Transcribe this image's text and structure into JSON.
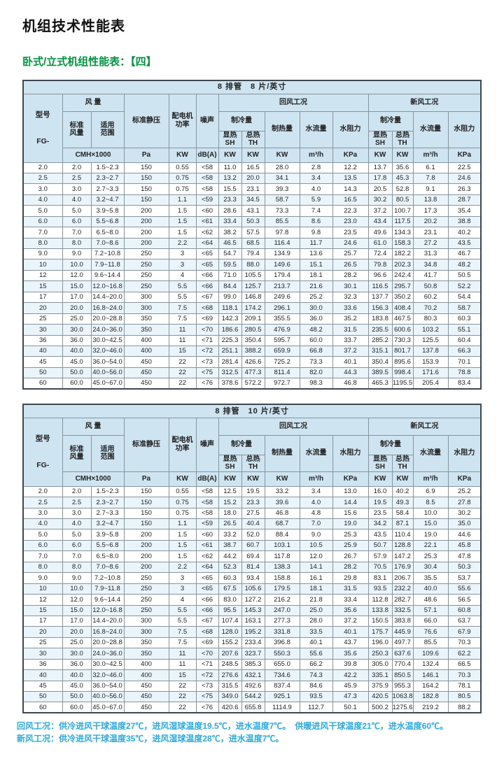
{
  "page": {
    "title": "机组技术性能表",
    "subtitle": "卧式/立式机组性能表：【四】",
    "notes": [
      "回风工况：供冷进风干球温度27℃，进风湿球温度19.5℃，进水温度7℃。　供暖进风干球温度21℃，进水温度60℃。",
      "新风工况：供冷进风干球温度35℃，进风湿球温度28℃，进水温度7℃。"
    ]
  },
  "colors": {
    "header_bg": "#cfe4f1",
    "stripe_bg": "#e9f4fb",
    "subtitle_green": "#009640",
    "note_blue": "#29abe2"
  },
  "header": {
    "rows": [
      [
        {
          "label": "型号\nFG-",
          "rowspan": 4,
          "name": "col-model",
          "cls": "model"
        },
        {
          "label": "风 量",
          "colspan": 2,
          "name": "col-air-volume"
        },
        {
          "label": "标准静压",
          "rowspan": 3,
          "name": "col-static-pressure"
        },
        {
          "label": "配电机\n功率",
          "rowspan": 3,
          "name": "col-motor-power"
        },
        {
          "label": "噪声",
          "rowspan": 3,
          "name": "col-noise"
        },
        {
          "label": "回风工况",
          "colspan": 5,
          "name": "col-return-air-condition"
        },
        {
          "label": "新风工况",
          "colspan": 4,
          "name": "col-fresh-air-condition"
        }
      ],
      [
        {
          "label": "标准\n风量",
          "rowspan": 2,
          "name": "col-standard-airflow"
        },
        {
          "label": "适用\n范围",
          "rowspan": 2,
          "name": "col-applicable-range"
        },
        {
          "label": "制冷量",
          "colspan": 2,
          "name": "col-cooling-capacity-return"
        },
        {
          "label": "制热量",
          "rowspan": 2,
          "name": "col-heating-capacity-return"
        },
        {
          "label": "水流量",
          "rowspan": 2,
          "name": "col-water-flow-return"
        },
        {
          "label": "水阻力",
          "rowspan": 2,
          "name": "col-water-resistance-return"
        },
        {
          "label": "制冷量",
          "colspan": 2,
          "name": "col-cooling-capacity-fresh"
        },
        {
          "label": "水流量",
          "rowspan": 2,
          "name": "col-water-flow-fresh"
        },
        {
          "label": "水阻力",
          "rowspan": 2,
          "name": "col-water-resistance-fresh"
        }
      ],
      [
        {
          "label": "显热\nSH",
          "name": "col-sensible-heat-return"
        },
        {
          "label": "总热\nTH",
          "name": "col-total-heat-return"
        },
        {
          "label": "显热\nSH",
          "name": "col-sensible-heat-fresh"
        },
        {
          "label": "总热\nTH",
          "name": "col-total-heat-fresh"
        }
      ],
      [
        {
          "label": "CMH×1000",
          "colspan": 2,
          "name": "unit-cmh"
        },
        {
          "label": "Pa",
          "name": "unit-pa"
        },
        {
          "label": "KW",
          "name": "unit-kw"
        },
        {
          "label": "dB(A)",
          "name": "unit-dba"
        },
        {
          "label": "KW",
          "name": "unit-kw"
        },
        {
          "label": "KW",
          "name": "unit-kw"
        },
        {
          "label": "KW",
          "name": "unit-kw"
        },
        {
          "label": "m³/h",
          "name": "unit-m3h"
        },
        {
          "label": "KPa",
          "name": "unit-kpa"
        },
        {
          "label": "KW",
          "name": "unit-kw"
        },
        {
          "label": "KW",
          "name": "unit-kw"
        },
        {
          "label": "m³/h",
          "name": "unit-m3h"
        },
        {
          "label": "KPa",
          "name": "unit-kpa"
        }
      ]
    ]
  },
  "tables": [
    {
      "title": "8 排管　8 片/英寸",
      "rows": [
        [
          "2.0",
          "2.0",
          "1.5~2.3",
          "150",
          "0.55",
          "<58",
          "11.0",
          "16.5",
          "28.0",
          "2.8",
          "12.2",
          "13.7",
          "35.6",
          "6.1",
          "22.5"
        ],
        [
          "2.5",
          "2.5",
          "2.3~2.7",
          "150",
          "0.75",
          "<58",
          "13.2",
          "20.0",
          "34.1",
          "3.4",
          "13.5",
          "17.8",
          "45.3",
          "7.8",
          "24.6"
        ],
        [
          "3.0",
          "3.0",
          "2.7~3.3",
          "150",
          "0.75",
          "<58",
          "15.5",
          "23.1",
          "39.3",
          "4.0",
          "14.3",
          "20.5",
          "52.8",
          "9.1",
          "26.3"
        ],
        [
          "4.0",
          "4.0",
          "3.2~4.7",
          "150",
          "1.1",
          "<59",
          "23.3",
          "34.5",
          "58.7",
          "5.9",
          "16.5",
          "30.2",
          "80.5",
          "13.8",
          "28.7"
        ],
        [
          "5.0",
          "5.0",
          "3.9~5.8",
          "200",
          "1.5",
          "<60",
          "28.6",
          "43.1",
          "73.3",
          "7.4",
          "22.3",
          "37.2",
          "100.7",
          "17.3",
          "35.4"
        ],
        [
          "6.0",
          "6.0",
          "5.5~6.8",
          "200",
          "1.5",
          "<61",
          "33.4",
          "50.3",
          "85.5",
          "8.6",
          "23.0",
          "43.4",
          "117.5",
          "20.2",
          "38.8"
        ],
        [
          "7.0",
          "7.0",
          "6.5~8.0",
          "200",
          "1.5",
          "<62",
          "38.2",
          "57.5",
          "97.8",
          "9.8",
          "23.5",
          "49.6",
          "134.3",
          "23.1",
          "40.2"
        ],
        [
          "8.0",
          "8.0",
          "7.0~8.6",
          "200",
          "2.2",
          "<64",
          "46.5",
          "68.5",
          "116.4",
          "11.7",
          "24.6",
          "61.0",
          "158.3",
          "27.2",
          "43.5"
        ],
        [
          "9.0",
          "9.0",
          "7.2~10.8",
          "250",
          "3",
          "<65",
          "54.7",
          "79.4",
          "134.9",
          "13.6",
          "25.7",
          "72.4",
          "182.2",
          "31.3",
          "46.7"
        ],
        [
          "10",
          "10.0",
          "7.9~11.8",
          "250",
          "3",
          "<65",
          "59.5",
          "88.0",
          "149.6",
          "15.1",
          "26.5",
          "79.8",
          "202.3",
          "34.8",
          "48.2"
        ],
        [
          "12",
          "12.0",
          "9.6~14.4",
          "250",
          "4",
          "<66",
          "71.0",
          "105.5",
          "179.4",
          "18.1",
          "28.2",
          "96.6",
          "242.4",
          "41.7",
          "50.5"
        ],
        [
          "15",
          "15.0",
          "12.0~16.8",
          "250",
          "5.5",
          "<66",
          "84.4",
          "125.7",
          "213.7",
          "21.6",
          "30.1",
          "116.5",
          "295.7",
          "50.8",
          "52.2"
        ],
        [
          "17",
          "17.0",
          "14.4~20.0",
          "300",
          "5.5",
          "<67",
          "99.0",
          "146.8",
          "249.6",
          "25.2",
          "32.3",
          "137.7",
          "350.2",
          "60.2",
          "54.4"
        ],
        [
          "20",
          "20.0",
          "16.8~24.0",
          "300",
          "7.5",
          "<68",
          "118.1",
          "174.2",
          "296.1",
          "30.0",
          "33.6",
          "156.3",
          "408.4",
          "70.2",
          "58.7"
        ],
        [
          "25",
          "25.0",
          "20.0~28.8",
          "350",
          "7.5",
          "<69",
          "142.3",
          "209.1",
          "355.5",
          "36.0",
          "35.2",
          "183.8",
          "467.5",
          "80.3",
          "60.3"
        ],
        [
          "30",
          "30.0",
          "24.0~36.0",
          "350",
          "11",
          "<70",
          "186.6",
          "280.5",
          "476.9",
          "48.2",
          "31.5",
          "235.5",
          "600.6",
          "103.2",
          "55.1"
        ],
        [
          "36",
          "36.0",
          "30.0~42.5",
          "400",
          "11",
          "<71",
          "225.3",
          "350.4",
          "595.7",
          "60.0",
          "33.7",
          "285.2",
          "730.3",
          "125.5",
          "60.4"
        ],
        [
          "40",
          "40.0",
          "32.0~46.0",
          "400",
          "15",
          "<72",
          "251.1",
          "388.2",
          "659.9",
          "66.8",
          "37.2",
          "315.1",
          "801.7",
          "137.8",
          "66.3"
        ],
        [
          "45",
          "45.0",
          "36.0~54.0",
          "450",
          "22",
          "<73",
          "281.4",
          "426.6",
          "725.2",
          "73.3",
          "40.1",
          "350.4",
          "895.6",
          "153.9",
          "70.1"
        ],
        [
          "50",
          "50.0",
          "40.0~56.0",
          "450",
          "22",
          "<75",
          "312.5",
          "477.3",
          "811.4",
          "82.0",
          "44.3",
          "389.5",
          "998.4",
          "171.6",
          "78.8"
        ],
        [
          "60",
          "60.0",
          "45.0~67.0",
          "450",
          "22",
          "<76",
          "378.6",
          "572.2",
          "972.7",
          "98.3",
          "46.8",
          "465.3",
          "1195.5",
          "205.4",
          "83.4"
        ]
      ]
    },
    {
      "title": "8 排管　10 片/英寸",
      "rows": [
        [
          "2.0",
          "2.0",
          "1.5~2.3",
          "150",
          "0.55",
          "<58",
          "12.5",
          "19.5",
          "33.2",
          "3.4",
          "13.0",
          "16.0",
          "40.2",
          "6.9",
          "25.2"
        ],
        [
          "2.5",
          "2.5",
          "2.3~2.7",
          "150",
          "0.75",
          "<58",
          "15.2",
          "23.3",
          "39.6",
          "4.0",
          "14.4",
          "19.5",
          "49.3",
          "8.5",
          "27.8"
        ],
        [
          "3.0",
          "3.0",
          "2.7~3.3",
          "150",
          "0.75",
          "<58",
          "18.0",
          "27.5",
          "46.8",
          "4.8",
          "15.6",
          "23.5",
          "58.4",
          "10.0",
          "30.2"
        ],
        [
          "4.0",
          "4.0",
          "3.2~4.7",
          "150",
          "1.1",
          "<59",
          "26.5",
          "40.4",
          "68.7",
          "7.0",
          "19.0",
          "34.2",
          "87.1",
          "15.0",
          "35.0"
        ],
        [
          "5.0",
          "5.0",
          "3.9~5.8",
          "200",
          "1.5",
          "<60",
          "33.2",
          "52.0",
          "88.4",
          "9.0",
          "25.3",
          "43.5",
          "110.4",
          "19.0",
          "44.6"
        ],
        [
          "6.0",
          "6.0",
          "5.5~6.8",
          "200",
          "1.5",
          "<61",
          "38.7",
          "60.7",
          "103.1",
          "10.5",
          "25.9",
          "50.7",
          "128.8",
          "22.1",
          "45.8"
        ],
        [
          "7.0",
          "7.0",
          "6.5~8.0",
          "200",
          "1.5",
          "<62",
          "44.2",
          "69.4",
          "117.8",
          "12.0",
          "26.7",
          "57.9",
          "147.2",
          "25.3",
          "47.8"
        ],
        [
          "8.0",
          "8.0",
          "7.0~8.6",
          "200",
          "2.2",
          "<64",
          "52.3",
          "81.4",
          "138.3",
          "14.1",
          "28.2",
          "70.5",
          "176.9",
          "30.4",
          "50.3"
        ],
        [
          "9.0",
          "9.0",
          "7.2~10.8",
          "250",
          "3",
          "<65",
          "60.3",
          "93.4",
          "158.8",
          "16.1",
          "29.8",
          "83.1",
          "206.7",
          "35.5",
          "53.7"
        ],
        [
          "10",
          "10.0",
          "7.9~11.8",
          "250",
          "3",
          "<65",
          "67.5",
          "105.6",
          "179.5",
          "18.1",
          "31.5",
          "93.5",
          "232.2",
          "40.0",
          "55.6"
        ],
        [
          "12",
          "12.0",
          "9.6~14.4",
          "250",
          "4",
          "<66",
          "83.0",
          "127.2",
          "216.2",
          "21.8",
          "33.4",
          "112.8",
          "282.7",
          "48.6",
          "56.5"
        ],
        [
          "15",
          "15.0",
          "12.0~16.8",
          "250",
          "5.5",
          "<66",
          "95.5",
          "145.3",
          "247.0",
          "25.0",
          "35.6",
          "133.8",
          "332.5",
          "57.1",
          "60.8"
        ],
        [
          "17",
          "17.0",
          "14.4~20.0",
          "300",
          "5.5",
          "<67",
          "107.4",
          "163.1",
          "277.3",
          "28.0",
          "37.2",
          "150.5",
          "383.8",
          "66.0",
          "63.7"
        ],
        [
          "20",
          "20.0",
          "16.8~24.0",
          "300",
          "7.5",
          "<68",
          "128.0",
          "195.2",
          "331.8",
          "33.5",
          "40.1",
          "175.7",
          "445.9",
          "76.6",
          "67.9"
        ],
        [
          "25",
          "25.0",
          "20.0~28.8",
          "350",
          "7.5",
          "<69",
          "155.2",
          "233.4",
          "396.8",
          "40.1",
          "43.7",
          "196.0",
          "497.7",
          "85.5",
          "70.3"
        ],
        [
          "30",
          "30.0",
          "24.0~36.0",
          "350",
          "11",
          "<70",
          "207.6",
          "323.7",
          "550.3",
          "55.6",
          "35.6",
          "250.3",
          "637.6",
          "109.6",
          "62.2"
        ],
        [
          "36",
          "36.0",
          "30.0~42.5",
          "400",
          "11",
          "<71",
          "248.5",
          "385.3",
          "655.0",
          "66.2",
          "39.8",
          "305.0",
          "770.4",
          "132.4",
          "66.5"
        ],
        [
          "40",
          "40.0",
          "32.0~46.0",
          "400",
          "15",
          "<72",
          "276.6",
          "432.1",
          "734.6",
          "74.3",
          "42.2",
          "335.1",
          "850.5",
          "146.1",
          "70.3"
        ],
        [
          "45",
          "45.0",
          "36.0~54.0",
          "450",
          "22",
          "<73",
          "315.5",
          "492.6",
          "837.4",
          "84.6",
          "45.9",
          "375.9",
          "955.3",
          "164.2",
          "78.1"
        ],
        [
          "50",
          "50.0",
          "40.0~56.0",
          "450",
          "22",
          "<75",
          "349.0",
          "544.2",
          "925.1",
          "93.5",
          "47.3",
          "420.5",
          "1063.8",
          "182.8",
          "80.5"
        ],
        [
          "60",
          "60.0",
          "45.0~67.0",
          "450",
          "22",
          "<76",
          "420.6",
          "655.8",
          "1114.9",
          "112.7",
          "50.1",
          "500.2",
          "1275.6",
          "219.2",
          "88.2"
        ]
      ]
    }
  ]
}
